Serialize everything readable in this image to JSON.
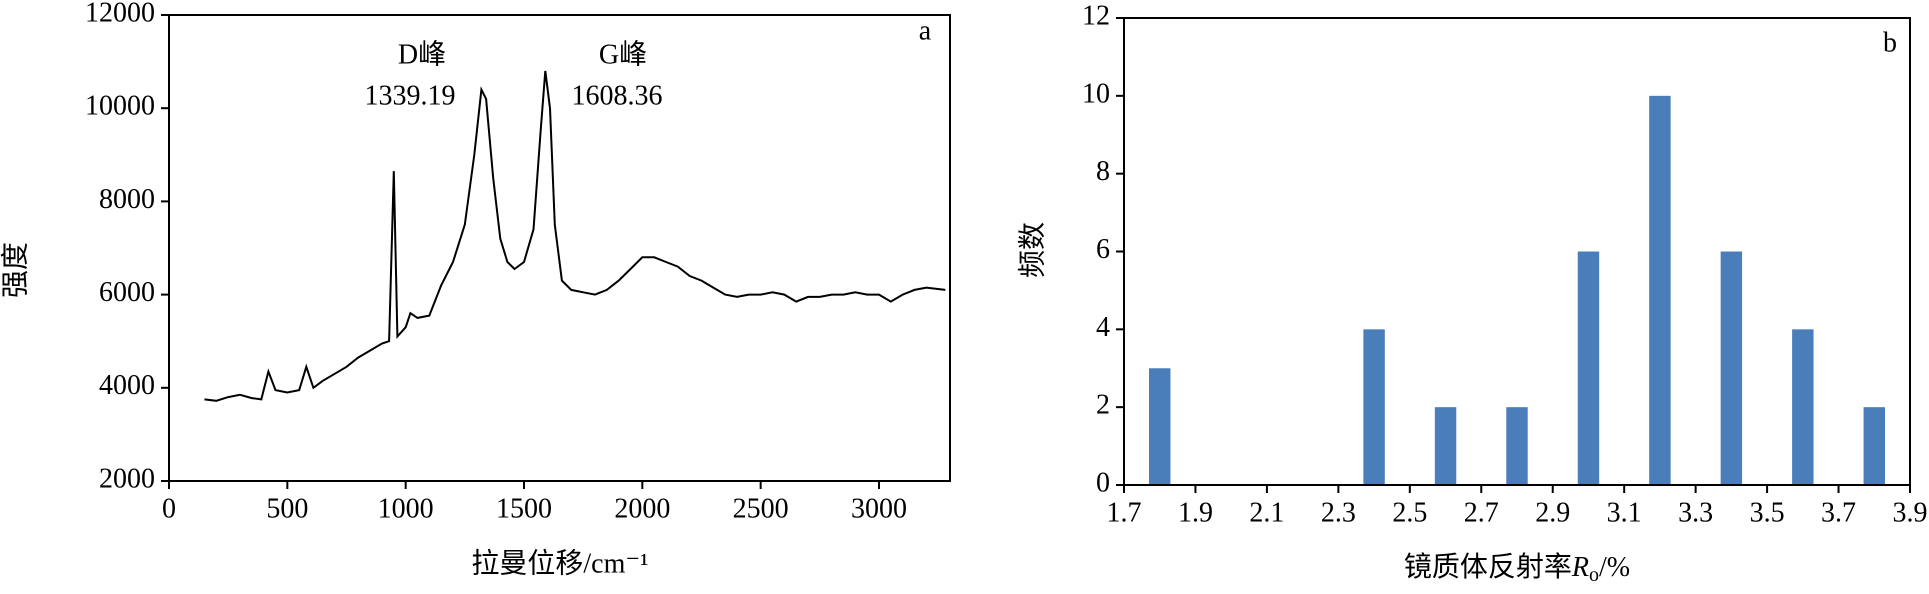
{
  "chart_data": [
    {
      "type": "line",
      "panel": "a",
      "xlabel": "拉曼位移/cm⁻¹",
      "ylabel": "强度",
      "annotations": [
        "D峰",
        "1339.19",
        "G峰",
        "1608.36"
      ],
      "color": "#000000",
      "x": [
        150,
        200,
        250,
        300,
        350,
        390,
        420,
        450,
        500,
        550,
        580,
        610,
        650,
        700,
        750,
        800,
        850,
        900,
        930,
        950,
        965,
        1000,
        1020,
        1050,
        1100,
        1150,
        1200,
        1250,
        1290,
        1320,
        1340,
        1370,
        1400,
        1430,
        1460,
        1500,
        1540,
        1570,
        1590,
        1610,
        1630,
        1660,
        1700,
        1750,
        1800,
        1850,
        1900,
        1950,
        2000,
        2050,
        2100,
        2150,
        2200,
        2250,
        2300,
        2350,
        2400,
        2450,
        2500,
        2550,
        2600,
        2650,
        2700,
        2750,
        2800,
        2850,
        2900,
        2950,
        3000,
        3050,
        3100,
        3150,
        3200,
        3280
      ],
      "values": [
        3750,
        3720,
        3800,
        3850,
        3780,
        3750,
        4350,
        3950,
        3900,
        3950,
        4450,
        4000,
        4150,
        4300,
        4450,
        4650,
        4800,
        4950,
        5000,
        8650,
        5100,
        5300,
        5600,
        5500,
        5550,
        6200,
        6700,
        7500,
        9000,
        10400,
        10200,
        8500,
        7200,
        6700,
        6550,
        6700,
        7400,
        9500,
        10800,
        10000,
        7500,
        6300,
        6100,
        6050,
        6000,
        6100,
        6300,
        6550,
        6800,
        6800,
        6700,
        6600,
        6400,
        6300,
        6150,
        6000,
        5950,
        6000,
        6000,
        6050,
        6000,
        5850,
        5950,
        5950,
        6000,
        6000,
        6050,
        6000,
        6000,
        5850,
        6000,
        6100,
        6150,
        6100
      ],
      "xlim": [
        0,
        3300
      ],
      "xticks": [
        0,
        500,
        1000,
        1500,
        2000,
        2500,
        3000
      ],
      "ylim": [
        2000,
        12000
      ],
      "yticks": [
        2000,
        4000,
        6000,
        8000,
        10000,
        12000
      ]
    },
    {
      "type": "bar",
      "panel": "b",
      "xlabel_parts": [
        "镜质体反射率",
        "R",
        "o",
        "/%"
      ],
      "ylabel": "频数",
      "color": "#4a7ebb",
      "x": [
        1.8,
        2.4,
        2.6,
        2.8,
        3.0,
        3.2,
        3.4,
        3.6,
        3.8
      ],
      "values": [
        3,
        4,
        2,
        2,
        6,
        10,
        6,
        4,
        2
      ],
      "xlim": [
        1.7,
        3.9
      ],
      "xticks": [
        1.7,
        1.9,
        2.1,
        2.3,
        2.5,
        2.7,
        2.9,
        3.1,
        3.3,
        3.5,
        3.7,
        3.9
      ],
      "ylim": [
        0,
        12
      ],
      "yticks": [
        0,
        2,
        4,
        6,
        8,
        10,
        12
      ]
    }
  ]
}
